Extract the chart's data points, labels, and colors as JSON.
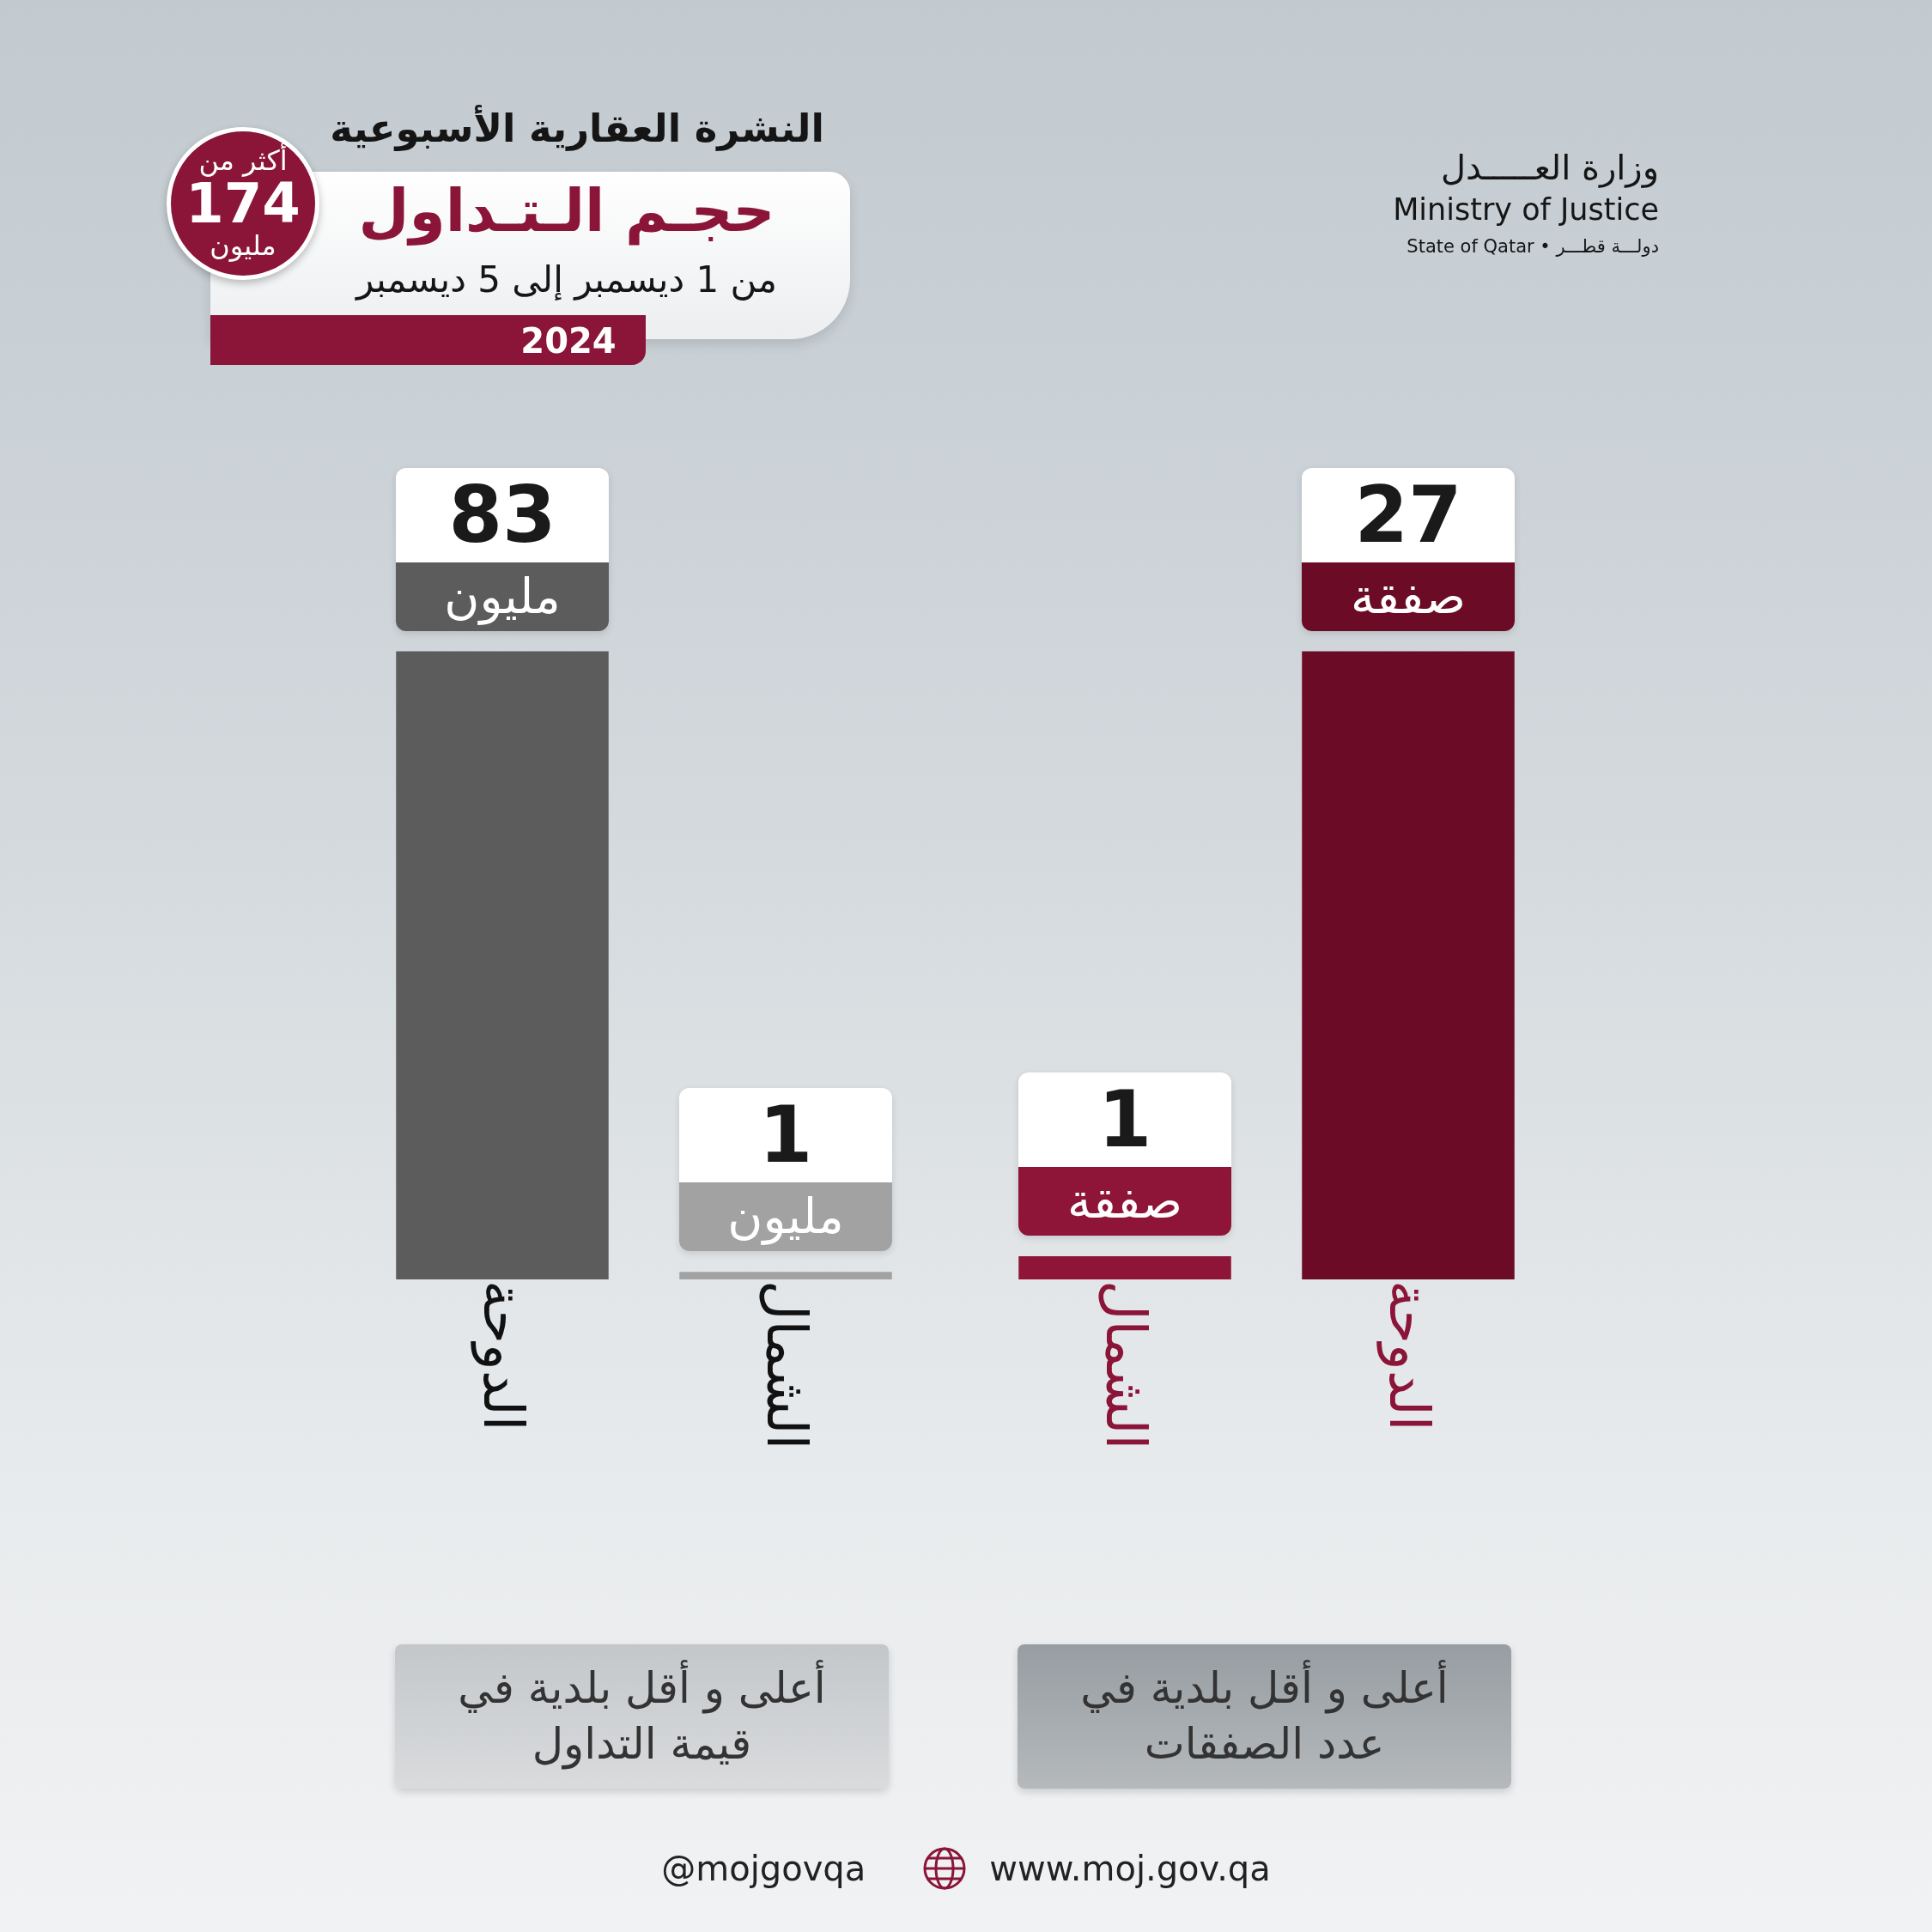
{
  "chart_data": [
    {
      "type": "other",
      "title": "النشرة العقارية الأسبوعية",
      "subtitle": "حجـم الـتـداول",
      "annotations": [
        "من 1 ديسمبر إلى 5 ديسمبر",
        "2024",
        "أكثر من\n174\nمليون",
        "وزارة العـــــدل",
        "Ministry of Justice",
        "State of Qatar • دولـــة قطـــر"
      ]
    },
    {
      "type": "bar",
      "categories": [
        "الدوحة",
        "الشمال"
      ],
      "values": [
        83,
        1
      ],
      "colors": [
        "#5c5c5c",
        "#a2a2a2"
      ],
      "value_labels": [
        "83 مليون",
        "1 مليون"
      ],
      "xlabel": "أعلى و أقل بلدية في قيمة التداول",
      "tick_labels": "x"
    },
    {
      "type": "bar",
      "categories": [
        "الشمال",
        "الدوحة"
      ],
      "values": [
        1,
        27
      ],
      "colors": [
        "#8e1537",
        "#6b0b26"
      ],
      "value_labels": [
        "1 صفقة",
        "27 صفقة"
      ],
      "xlabel": "أعلى و أقل بلدية في عدد الصفقات",
      "tick_labels": "x"
    },
    {
      "type": "other",
      "annotations": [
        "@mojgovqa",
        "www.moj.gov.qa"
      ]
    }
  ]
}
